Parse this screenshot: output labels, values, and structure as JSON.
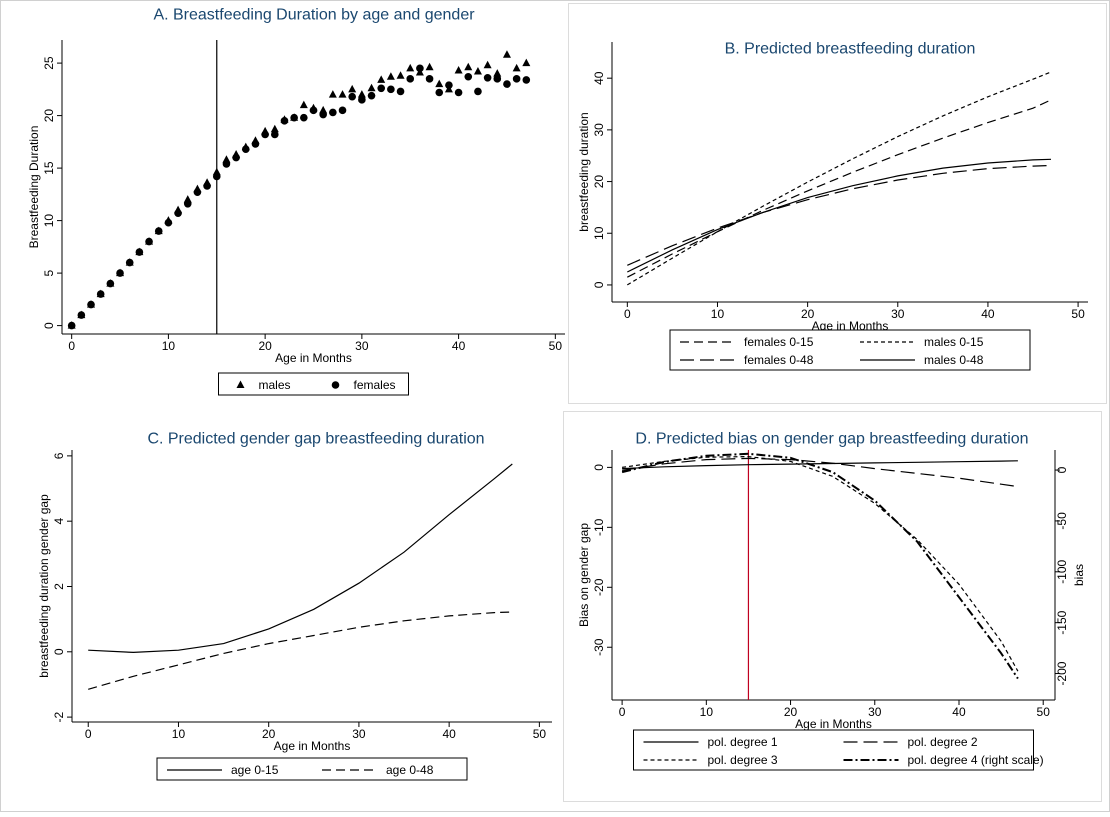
{
  "chart_data": [
    {
      "type": "scatter",
      "title": "A. Breastfeeding Duration by age and gender",
      "x_label": "Age in Months",
      "y_label": "Breastfeeding Duration",
      "x": [
        0,
        1,
        2,
        3,
        4,
        5,
        6,
        7,
        8,
        9,
        10,
        11,
        12,
        13,
        14,
        15,
        16,
        17,
        18,
        19,
        20,
        21,
        22,
        23,
        24,
        25,
        26,
        27,
        28,
        29,
        30,
        31,
        32,
        33,
        34,
        35,
        36,
        37,
        38,
        39,
        40,
        41,
        42,
        43,
        44,
        45,
        46,
        47
      ],
      "series": [
        {
          "name": "males",
          "marker": "triangle",
          "color": "#000000",
          "values": [
            0,
            1,
            2,
            3,
            4,
            5,
            6,
            7,
            8,
            9,
            10,
            11,
            12,
            13,
            13.6,
            14.6,
            15.8,
            16.3,
            17,
            17.6,
            18.5,
            18.7,
            19.6,
            19.8,
            21,
            20.7,
            20.5,
            22,
            22,
            22.5,
            22,
            22.6,
            23.4,
            23.7,
            23.8,
            24.5,
            24.1,
            24.6,
            23,
            22.5,
            24.3,
            24.6,
            24.2,
            24.8,
            24,
            25.8,
            24.5,
            25
          ]
        },
        {
          "name": "females",
          "marker": "circle",
          "color": "#000000",
          "values": [
            0,
            1,
            2,
            3,
            4,
            5,
            6,
            7,
            8,
            9,
            9.8,
            10.7,
            11.6,
            12.7,
            13.3,
            14.2,
            15.4,
            16,
            16.8,
            17.3,
            18.2,
            18.2,
            19.5,
            19.8,
            19.8,
            20.5,
            20.1,
            20.3,
            20.5,
            21.8,
            21.5,
            21.9,
            22.6,
            22.5,
            22.3,
            23.5,
            24.5,
            23.5,
            22.2,
            22.9,
            22.2,
            23.7,
            22.3,
            23.6,
            23.5,
            23,
            23.5,
            23.4
          ]
        }
      ],
      "vline": {
        "value": 15,
        "color": "#000000"
      },
      "xlim": [
        -1,
        51
      ],
      "xticks": [
        0,
        10,
        20,
        30,
        40,
        50
      ],
      "ylim": [
        -0.8,
        27.2
      ],
      "yticks": [
        0,
        5,
        10,
        15,
        20,
        25
      ],
      "legend_columns": 2
    },
    {
      "type": "line",
      "title": "B. Predicted breastfeeding duration",
      "x_label": "Age in Months",
      "y_label": "breastfeeding duration",
      "x": [
        0,
        5,
        10,
        15,
        20,
        25,
        30,
        35,
        40,
        45,
        47
      ],
      "series": [
        {
          "name": "females 0-15",
          "style": "dash",
          "color": "#000000",
          "values": [
            1.5,
            6,
            10.3,
            14.4,
            18.2,
            21.8,
            25.2,
            28.4,
            31.4,
            34.2,
            35.8
          ]
        },
        {
          "name": "males 0-15",
          "style": "short-dash",
          "color": "#000000",
          "values": [
            0,
            5.2,
            10.3,
            15.2,
            19.9,
            24.4,
            28.7,
            32.7,
            36.4,
            39.8,
            41.2
          ]
        },
        {
          "name": "females 0-48",
          "style": "long-dash",
          "color": "#000000",
          "values": [
            3.8,
            7.6,
            11,
            14,
            16.5,
            18.6,
            20.3,
            21.6,
            22.5,
            23,
            23.1
          ]
        },
        {
          "name": "males 0-48",
          "style": "solid",
          "color": "#000000",
          "values": [
            2.5,
            6.8,
            10.7,
            14,
            16.9,
            19.2,
            21.1,
            22.6,
            23.6,
            24.2,
            24.3
          ]
        }
      ],
      "xlim": [
        -1.7,
        51.1
      ],
      "xticks": [
        0,
        10,
        20,
        30,
        40,
        50
      ],
      "ylim": [
        -3.3,
        47
      ],
      "yticks": [
        0,
        10,
        20,
        30,
        40
      ],
      "legend_columns": 2
    },
    {
      "type": "line",
      "title": "C. Predicted gender gap breastfeeding duration",
      "x_label": "Age in Months",
      "y_label": "breastfeeding duration gender gap",
      "x": [
        0,
        5,
        10,
        15,
        20,
        25,
        30,
        35,
        40,
        45,
        47
      ],
      "series": [
        {
          "name": "age 0-15",
          "style": "solid",
          "color": "#000000",
          "values": [
            0.05,
            -0.02,
            0.05,
            0.25,
            0.7,
            1.3,
            2.1,
            3.05,
            4.2,
            5.3,
            5.75
          ]
        },
        {
          "name": "age 0-48",
          "style": "dash",
          "color": "#000000",
          "values": [
            -1.15,
            -0.75,
            -0.4,
            -0.05,
            0.25,
            0.5,
            0.75,
            0.95,
            1.1,
            1.2,
            1.22
          ]
        }
      ],
      "xlim": [
        -1.8,
        51.4
      ],
      "xticks": [
        0,
        10,
        20,
        30,
        40,
        50
      ],
      "ylim": [
        -2.15,
        6.18
      ],
      "yticks": [
        -2,
        0,
        2,
        4,
        6
      ],
      "legend_columns": 2
    },
    {
      "type": "line",
      "title": "D. Predicted bias on gender gap breastfeeding duration",
      "x_label": "Age in Months",
      "y_label": "Bias on gender gap",
      "y2_label": "bias",
      "x": [
        0,
        5,
        10,
        15,
        20,
        25,
        30,
        35,
        40,
        45,
        47
      ],
      "series": [
        {
          "name": "pol. degree 1",
          "style": "solid",
          "color": "#000000",
          "values": [
            -0.2,
            0.1,
            0.3,
            0.45,
            0.55,
            0.65,
            0.75,
            0.85,
            0.95,
            1.05,
            1.1
          ]
        },
        {
          "name": "pol. degree 2",
          "style": "long-dash",
          "color": "#000000",
          "values": [
            -0.5,
            0.6,
            1.3,
            1.5,
            1.3,
            0.7,
            -0.2,
            -1,
            -1.8,
            -2.8,
            -3.2
          ]
        },
        {
          "name": "pol. degree 3",
          "style": "short-dash",
          "color": "#000000",
          "values": [
            0,
            1,
            1.7,
            1.8,
            1,
            -1.5,
            -6,
            -12,
            -19.5,
            -29,
            -34
          ]
        },
        {
          "name": "pol. degree 4 (right scale)",
          "style": "dash-dot",
          "color": "#000000",
          "axis": "y2",
          "values": [
            -2,
            8,
            14,
            16,
            12,
            -2,
            -30,
            -70,
            -125,
            -180,
            -205
          ]
        }
      ],
      "vline": {
        "value": 15,
        "color": "#c00020"
      },
      "xlim": [
        -1.2,
        51.4
      ],
      "xticks": [
        0,
        10,
        20,
        30,
        40,
        50
      ],
      "ylim": [
        -38.8,
        2.9
      ],
      "yticks": [
        -30,
        -20,
        -10,
        0
      ],
      "y2lim": [
        -226,
        19.7
      ],
      "y2ticks": [
        -200,
        -150,
        -100,
        -50,
        0
      ],
      "legend_columns": 2
    }
  ]
}
